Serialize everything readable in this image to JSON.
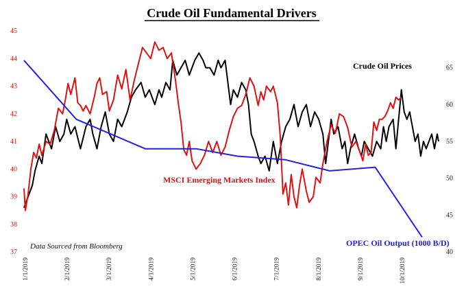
{
  "chart_data": {
    "type": "line",
    "title": "Crude Oil Fundamental Drivers",
    "source_note": "Data Sourced from Bloomberg",
    "x_ticks": [
      "1/1/2019",
      "2/1/2019",
      "3/1/2019",
      "4/1/2019",
      "5/1/2019",
      "6/1/2019",
      "7/1/2019",
      "8/1/2019",
      "9/1/2019",
      "10/1/2019"
    ],
    "x_range": [
      0,
      301
    ],
    "y_left": {
      "range": [
        37,
        45
      ],
      "ticks": [
        "37",
        "38",
        "39",
        "40",
        "41",
        "42",
        "43",
        "44",
        "45"
      ]
    },
    "y_right": {
      "range": [
        40,
        70
      ],
      "ticks": [
        "40",
        "45",
        "50",
        "55",
        "60",
        "65"
      ]
    },
    "legend": "inline-labels",
    "grid": false,
    "series": [
      {
        "name": "Crude Oil Prices",
        "color": "#000000",
        "axis": "right",
        "points": [
          [
            0,
            46
          ],
          [
            2,
            47
          ],
          [
            4,
            48
          ],
          [
            6,
            49
          ],
          [
            8,
            51
          ],
          [
            11,
            53
          ],
          [
            13,
            52
          ],
          [
            16,
            56
          ],
          [
            20,
            54
          ],
          [
            23,
            57
          ],
          [
            26,
            55
          ],
          [
            29,
            56
          ],
          [
            31,
            58
          ],
          [
            34,
            56
          ],
          [
            37,
            57
          ],
          [
            41,
            54
          ],
          [
            45,
            57
          ],
          [
            48,
            58
          ],
          [
            50,
            56
          ],
          [
            53,
            54
          ],
          [
            56,
            57
          ],
          [
            59,
            59
          ],
          [
            62,
            56
          ],
          [
            65,
            55
          ],
          [
            68,
            58
          ],
          [
            71,
            57
          ],
          [
            75,
            59
          ],
          [
            78,
            61
          ],
          [
            81,
            62
          ],
          [
            85,
            63
          ],
          [
            88,
            61
          ],
          [
            91,
            62
          ],
          [
            95,
            60
          ],
          [
            98,
            62
          ],
          [
            100,
            61
          ],
          [
            103,
            63
          ],
          [
            106,
            62
          ],
          [
            108,
            66
          ],
          [
            111,
            64
          ],
          [
            114,
            65
          ],
          [
            117,
            66
          ],
          [
            120,
            64
          ],
          [
            124,
            66
          ],
          [
            127,
            67
          ],
          [
            130,
            66
          ],
          [
            132,
            65
          ],
          [
            135,
            65
          ],
          [
            138,
            64
          ],
          [
            141,
            66
          ],
          [
            143,
            65
          ],
          [
            146,
            66
          ],
          [
            148,
            63
          ],
          [
            150,
            60
          ],
          [
            152,
            62
          ],
          [
            155,
            61
          ],
          [
            158,
            63
          ],
          [
            161,
            62
          ],
          [
            163,
            60
          ],
          [
            165,
            56
          ],
          [
            167,
            55
          ],
          [
            170,
            53
          ],
          [
            172,
            52
          ],
          [
            175,
            53
          ],
          [
            178,
            51
          ],
          [
            181,
            55
          ],
          [
            184,
            52
          ],
          [
            187,
            55
          ],
          [
            190,
            57
          ],
          [
            193,
            58
          ],
          [
            196,
            60
          ],
          [
            199,
            57
          ],
          [
            202,
            59
          ],
          [
            205,
            60
          ],
          [
            208,
            57
          ],
          [
            211,
            59
          ],
          [
            214,
            58
          ],
          [
            217,
            56
          ],
          [
            219,
            52
          ],
          [
            221,
            55
          ],
          [
            223,
            58
          ],
          [
            225,
            56
          ],
          [
            228,
            57
          ],
          [
            231,
            54
          ],
          [
            233,
            55
          ],
          [
            235,
            52
          ],
          [
            237,
            54
          ],
          [
            240,
            56
          ],
          [
            243,
            54
          ],
          [
            245,
            53
          ],
          [
            247,
            55
          ],
          [
            250,
            54
          ],
          [
            253,
            53
          ],
          [
            256,
            55
          ],
          [
            259,
            54
          ],
          [
            261,
            57
          ],
          [
            263,
            55
          ],
          [
            265,
            57
          ],
          [
            268,
            58
          ],
          [
            270,
            54
          ],
          [
            272,
            58
          ],
          [
            274,
            62
          ],
          [
            276,
            59
          ],
          [
            278,
            58
          ],
          [
            280,
            59
          ],
          [
            282,
            57
          ],
          [
            284,
            55
          ],
          [
            286,
            56
          ],
          [
            288,
            53
          ],
          [
            290,
            55
          ],
          [
            292,
            54
          ],
          [
            294,
            55
          ],
          [
            296,
            56
          ],
          [
            298,
            54
          ],
          [
            300,
            56
          ],
          [
            301,
            55
          ]
        ]
      },
      {
        "name": "MSCI Emerging Markets Index",
        "color": "#e01010",
        "axis": "left",
        "points": [
          [
            0,
            39.3
          ],
          [
            1,
            38.5
          ],
          [
            3,
            39.1
          ],
          [
            5,
            40.0
          ],
          [
            7,
            40.6
          ],
          [
            9,
            40.4
          ],
          [
            11,
            40.9
          ],
          [
            13,
            40.5
          ],
          [
            16,
            41.0
          ],
          [
            19,
            40.9
          ],
          [
            22,
            41.4
          ],
          [
            25,
            42.2
          ],
          [
            28,
            42.0
          ],
          [
            30,
            42.5
          ],
          [
            32,
            43.1
          ],
          [
            34,
            42.7
          ],
          [
            37,
            43.3
          ],
          [
            39,
            42.4
          ],
          [
            41,
            42.3
          ],
          [
            43,
            42.1
          ],
          [
            45,
            42.3
          ],
          [
            48,
            42.0
          ],
          [
            51,
            42.6
          ],
          [
            53,
            43.1
          ],
          [
            55,
            43.3
          ],
          [
            57,
            42.7
          ],
          [
            60,
            42.8
          ],
          [
            62,
            42.1
          ],
          [
            65,
            42.5
          ],
          [
            68,
            43.4
          ],
          [
            71,
            42.9
          ],
          [
            74,
            43.6
          ],
          [
            77,
            42.5
          ],
          [
            80,
            43.2
          ],
          [
            83,
            43.8
          ],
          [
            86,
            44.4
          ],
          [
            89,
            44.2
          ],
          [
            92,
            44.0
          ],
          [
            95,
            44.6
          ],
          [
            98,
            44.3
          ],
          [
            101,
            44.4
          ],
          [
            104,
            44.0
          ],
          [
            107,
            44.2
          ],
          [
            110,
            43.2
          ],
          [
            112,
            42.4
          ],
          [
            114,
            41.7
          ],
          [
            116,
            40.7
          ],
          [
            118,
            40.5
          ],
          [
            120,
            41.0
          ],
          [
            122,
            40.3
          ],
          [
            125,
            40.0
          ],
          [
            128,
            40.2
          ],
          [
            131,
            40.5
          ],
          [
            134,
            41.0
          ],
          [
            137,
            40.6
          ],
          [
            140,
            41.0
          ],
          [
            143,
            40.5
          ],
          [
            146,
            40.8
          ],
          [
            149,
            41.4
          ],
          [
            152,
            41.9
          ],
          [
            155,
            42.2
          ],
          [
            158,
            42.3
          ],
          [
            161,
            42.7
          ],
          [
            164,
            43.3
          ],
          [
            167,
            43.0
          ],
          [
            170,
            42.3
          ],
          [
            172,
            42.8
          ],
          [
            174,
            42.5
          ],
          [
            176,
            43.0
          ],
          [
            179,
            42.8
          ],
          [
            181,
            43.0
          ],
          [
            184,
            42.4
          ],
          [
            186,
            41.2
          ],
          [
            188,
            39.1
          ],
          [
            190,
            39.5
          ],
          [
            192,
            38.7
          ],
          [
            194,
            39.8
          ],
          [
            196,
            39.0
          ],
          [
            198,
            38.6
          ],
          [
            200,
            39.4
          ],
          [
            202,
            40.0
          ],
          [
            205,
            39.2
          ],
          [
            207,
            38.8
          ],
          [
            210,
            39.0
          ],
          [
            212,
            39.7
          ],
          [
            215,
            39.5
          ],
          [
            217,
            40.2
          ],
          [
            220,
            41.0
          ],
          [
            223,
            41.6
          ],
          [
            226,
            41.3
          ],
          [
            229,
            42.0
          ],
          [
            232,
            41.9
          ],
          [
            235,
            41.5
          ],
          [
            238,
            40.8
          ],
          [
            241,
            41.0
          ],
          [
            244,
            40.6
          ],
          [
            246,
            40.3
          ],
          [
            248,
            40.9
          ],
          [
            250,
            40.5
          ],
          [
            252,
            40.6
          ],
          [
            254,
            41.7
          ],
          [
            256,
            41.4
          ],
          [
            258,
            41.8
          ],
          [
            260,
            41.8
          ],
          [
            262,
            41.9
          ],
          [
            264,
            42.1
          ],
          [
            266,
            42.4
          ],
          [
            268,
            42.2
          ],
          [
            270,
            42.6
          ],
          [
            272,
            42.5
          ],
          [
            274,
            42.6
          ]
        ]
      },
      {
        "name": "OPEC Oil Output (1000 B/D)",
        "color": "#2020e8",
        "axis": "right",
        "points": [
          [
            0,
            66
          ],
          [
            38,
            58
          ],
          [
            88,
            54
          ],
          [
            125,
            54
          ],
          [
            155,
            53
          ],
          [
            190,
            52.5
          ],
          [
            222,
            51
          ],
          [
            255,
            51.5
          ],
          [
            289,
            42
          ]
        ]
      }
    ]
  }
}
